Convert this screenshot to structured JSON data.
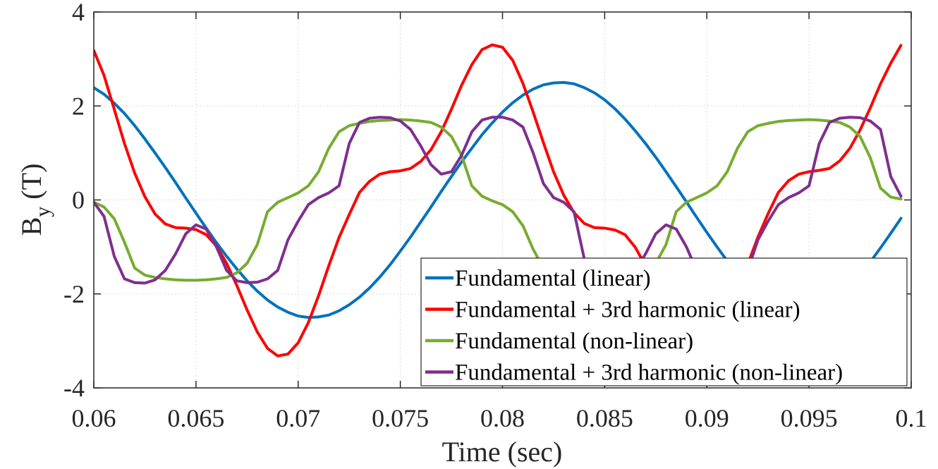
{
  "chart_data": {
    "type": "line",
    "xlabel": "Time (sec)",
    "ylabel": {
      "base": "B",
      "sub": "y",
      "rest": " (T)"
    },
    "xlim": [
      0.06,
      0.1
    ],
    "ylim": [
      -4,
      4
    ],
    "xticks": [
      0.06,
      0.065,
      0.07,
      0.075,
      0.08,
      0.085,
      0.09,
      0.095,
      0.1
    ],
    "xtick_labels": [
      "0.06",
      "0.065",
      "0.07",
      "0.075",
      "0.08",
      "0.085",
      "0.09",
      "0.095",
      "0.1"
    ],
    "yticks": [
      -4,
      -2,
      0,
      2,
      4
    ],
    "ytick_labels": [
      "-4",
      "-2",
      "0",
      "2",
      "4"
    ],
    "grid": true,
    "legend_position": "bottom-right",
    "series": [
      {
        "name": "Fundamental (linear)",
        "color": "#0072BD",
        "x": [
          0.06,
          0.0605,
          0.061,
          0.0615,
          0.062,
          0.0625,
          0.063,
          0.0635,
          0.064,
          0.0645,
          0.065,
          0.0655,
          0.066,
          0.0665,
          0.067,
          0.0675,
          0.068,
          0.0685,
          0.069,
          0.0695,
          0.07,
          0.0705,
          0.071,
          0.0715,
          0.072,
          0.0725,
          0.073,
          0.0735,
          0.074,
          0.0745,
          0.075,
          0.0755,
          0.076,
          0.0765,
          0.077,
          0.0775,
          0.078,
          0.0785,
          0.079,
          0.0795,
          0.08,
          0.0805,
          0.081,
          0.0815,
          0.082,
          0.0825,
          0.083,
          0.0835,
          0.084,
          0.0845,
          0.085,
          0.0855,
          0.086,
          0.0865,
          0.087,
          0.0875,
          0.088,
          0.0885,
          0.089,
          0.0895,
          0.09,
          0.0905,
          0.091,
          0.0915,
          0.092,
          0.0925,
          0.093,
          0.0935,
          0.094,
          0.0945,
          0.095,
          0.0955,
          0.096,
          0.0965,
          0.097,
          0.0975,
          0.098,
          0.0985,
          0.099,
          0.0995
        ],
        "y": [
          2.39,
          2.25,
          2.06,
          1.84,
          1.58,
          1.3,
          1.0,
          0.69,
          0.37,
          0.04,
          -0.28,
          -0.6,
          -0.91,
          -1.2,
          -1.47,
          -1.72,
          -1.94,
          -2.13,
          -2.28,
          -2.39,
          -2.47,
          -2.5,
          -2.49,
          -2.45,
          -2.36,
          -2.23,
          -2.07,
          -1.87,
          -1.64,
          -1.38,
          -1.09,
          -0.79,
          -0.47,
          -0.15,
          0.18,
          0.5,
          0.81,
          1.1,
          1.39,
          1.64,
          1.87,
          2.07,
          2.23,
          2.36,
          2.45,
          2.49,
          2.5,
          2.47,
          2.39,
          2.28,
          2.13,
          1.94,
          1.72,
          1.47,
          1.2,
          0.91,
          0.6,
          0.28,
          -0.04,
          -0.37,
          -0.69,
          -1.0,
          -1.3,
          -1.58,
          -1.84,
          -2.06,
          -2.25,
          -2.39,
          -2.48,
          -2.5,
          -2.48,
          -2.4,
          -2.26,
          -2.08,
          -1.86,
          -1.6,
          -1.32,
          -1.02,
          -0.71,
          -0.39
        ]
      },
      {
        "name": "Fundamental + 3rd harmonic (linear)",
        "color": "#FF0000",
        "x": [
          0.06,
          0.0605,
          0.061,
          0.0615,
          0.062,
          0.0625,
          0.063,
          0.0635,
          0.064,
          0.0645,
          0.065,
          0.0655,
          0.066,
          0.0665,
          0.067,
          0.0675,
          0.068,
          0.0685,
          0.069,
          0.0695,
          0.07,
          0.0705,
          0.071,
          0.0715,
          0.072,
          0.0725,
          0.073,
          0.0735,
          0.074,
          0.0745,
          0.075,
          0.0755,
          0.076,
          0.0765,
          0.077,
          0.0775,
          0.078,
          0.0785,
          0.079,
          0.0795,
          0.08,
          0.0805,
          0.081,
          0.0815,
          0.082,
          0.0825,
          0.083,
          0.0835,
          0.084,
          0.0845,
          0.085,
          0.0855,
          0.086,
          0.0865,
          0.087,
          0.0875,
          0.088,
          0.0885,
          0.089,
          0.0895,
          0.09,
          0.0905,
          0.091,
          0.0915,
          0.092,
          0.0925,
          0.093,
          0.0935,
          0.094,
          0.0945,
          0.095,
          0.0955,
          0.096,
          0.0965,
          0.097,
          0.0975,
          0.098,
          0.0985,
          0.099,
          0.0995
        ],
        "y": [
          3.18,
          2.65,
          1.93,
          1.2,
          0.57,
          0.07,
          -0.3,
          -0.51,
          -0.59,
          -0.6,
          -0.63,
          -0.74,
          -0.98,
          -1.35,
          -1.82,
          -2.34,
          -2.81,
          -3.16,
          -3.32,
          -3.28,
          -3.04,
          -2.61,
          -2.04,
          -1.4,
          -0.8,
          -0.31,
          0.16,
          0.4,
          0.55,
          0.6,
          0.62,
          0.67,
          0.82,
          1.07,
          1.45,
          1.93,
          2.44,
          2.88,
          3.2,
          3.3,
          3.25,
          2.97,
          2.48,
          1.87,
          1.22,
          0.6,
          0.1,
          -0.27,
          -0.5,
          -0.59,
          -0.6,
          -0.64,
          -0.74,
          -1.01,
          -1.4,
          -1.87,
          -2.4,
          -2.85,
          -3.18,
          -3.31,
          -3.27,
          -3.03,
          -2.59,
          -2.01,
          -1.37,
          -0.79,
          -0.29,
          0.16,
          0.41,
          0.55,
          0.6,
          0.63,
          0.67,
          0.83,
          1.1,
          1.49,
          1.96,
          2.47,
          2.91,
          3.29
        ]
      },
      {
        "name": "Fundamental (non-linear)",
        "color": "#77AC30",
        "x": [
          0.06,
          0.0605,
          0.061,
          0.0615,
          0.062,
          0.0625,
          0.063,
          0.0635,
          0.064,
          0.0645,
          0.065,
          0.0655,
          0.066,
          0.0665,
          0.067,
          0.0675,
          0.068,
          0.0685,
          0.069,
          0.0695,
          0.07,
          0.0705,
          0.071,
          0.0715,
          0.072,
          0.0725,
          0.073,
          0.0735,
          0.074,
          0.0745,
          0.075,
          0.0755,
          0.076,
          0.0765,
          0.077,
          0.0775,
          0.078,
          0.0785,
          0.079,
          0.0795,
          0.08,
          0.0805,
          0.081,
          0.0815,
          0.082,
          0.0825,
          0.083,
          0.0835,
          0.084,
          0.0845,
          0.085,
          0.0855,
          0.086,
          0.0865,
          0.087,
          0.0875,
          0.088,
          0.0885,
          0.089,
          0.0895,
          0.09,
          0.0905,
          0.091,
          0.0915,
          0.092,
          0.0925,
          0.093,
          0.0935,
          0.094,
          0.0945,
          0.095,
          0.0955,
          0.096,
          0.0965,
          0.097,
          0.0975,
          0.098,
          0.0985,
          0.099,
          0.0995
        ],
        "y": [
          -0.05,
          -0.15,
          -0.4,
          -0.9,
          -1.45,
          -1.6,
          -1.65,
          -1.68,
          -1.7,
          -1.71,
          -1.71,
          -1.7,
          -1.68,
          -1.65,
          -1.55,
          -1.35,
          -0.95,
          -0.25,
          -0.05,
          0.05,
          0.15,
          0.3,
          0.6,
          1.1,
          1.45,
          1.58,
          1.63,
          1.67,
          1.69,
          1.7,
          1.71,
          1.7,
          1.68,
          1.65,
          1.55,
          1.35,
          0.95,
          0.3,
          0.08,
          -0.02,
          -0.1,
          -0.25,
          -0.55,
          -1.05,
          -1.45,
          -1.58,
          -1.63,
          -1.67,
          -1.69,
          -1.7,
          -1.71,
          -1.7,
          -1.68,
          -1.65,
          -1.55,
          -1.35,
          -0.95,
          -0.25,
          -0.05,
          0.05,
          0.15,
          0.3,
          0.6,
          1.1,
          1.45,
          1.58,
          1.63,
          1.67,
          1.69,
          1.7,
          1.71,
          1.7,
          1.68,
          1.65,
          1.55,
          1.35,
          0.9,
          0.25,
          0.06,
          0.02
        ]
      },
      {
        "name": "Fundamental + 3rd harmonic (non-linear)",
        "color": "#7E2F8E",
        "x": [
          0.06,
          0.0605,
          0.061,
          0.0615,
          0.062,
          0.0625,
          0.063,
          0.0635,
          0.064,
          0.0645,
          0.065,
          0.0655,
          0.066,
          0.0665,
          0.067,
          0.0675,
          0.068,
          0.0685,
          0.069,
          0.0695,
          0.07,
          0.0705,
          0.071,
          0.0715,
          0.072,
          0.0725,
          0.073,
          0.0735,
          0.074,
          0.0745,
          0.075,
          0.0755,
          0.076,
          0.0765,
          0.077,
          0.0775,
          0.078,
          0.0785,
          0.079,
          0.0795,
          0.08,
          0.0805,
          0.081,
          0.0815,
          0.082,
          0.0825,
          0.083,
          0.0835,
          0.084,
          0.0845,
          0.085,
          0.0855,
          0.086,
          0.0865,
          0.087,
          0.0875,
          0.088,
          0.0885,
          0.089,
          0.0895,
          0.09,
          0.0905,
          0.091,
          0.0915,
          0.092,
          0.0925,
          0.093,
          0.0935,
          0.094,
          0.0945,
          0.095,
          0.0955,
          0.096,
          0.0965,
          0.097,
          0.0975,
          0.098,
          0.0985,
          0.099,
          0.0995
        ],
        "y": [
          -0.05,
          -0.35,
          -1.2,
          -1.68,
          -1.76,
          -1.77,
          -1.7,
          -1.5,
          -1.15,
          -0.72,
          -0.53,
          -0.62,
          -1.0,
          -1.5,
          -1.72,
          -1.76,
          -1.75,
          -1.68,
          -1.5,
          -0.85,
          -0.45,
          -0.1,
          0.05,
          0.15,
          0.3,
          1.2,
          1.65,
          1.74,
          1.76,
          1.75,
          1.68,
          1.5,
          1.15,
          0.75,
          0.55,
          0.6,
          0.95,
          1.45,
          1.7,
          1.76,
          1.76,
          1.7,
          1.55,
          1.0,
          0.35,
          0.05,
          -0.05,
          -0.25,
          -1.25,
          -1.68,
          -1.76,
          -1.77,
          -1.7,
          -1.5,
          -1.15,
          -0.72,
          -0.53,
          -0.62,
          -1.0,
          -1.5,
          -1.72,
          -1.76,
          -1.75,
          -1.68,
          -1.5,
          -0.85,
          -0.45,
          -0.1,
          0.05,
          0.15,
          0.3,
          1.2,
          1.65,
          1.74,
          1.76,
          1.75,
          1.68,
          1.5,
          0.5,
          0.08
        ]
      }
    ]
  }
}
